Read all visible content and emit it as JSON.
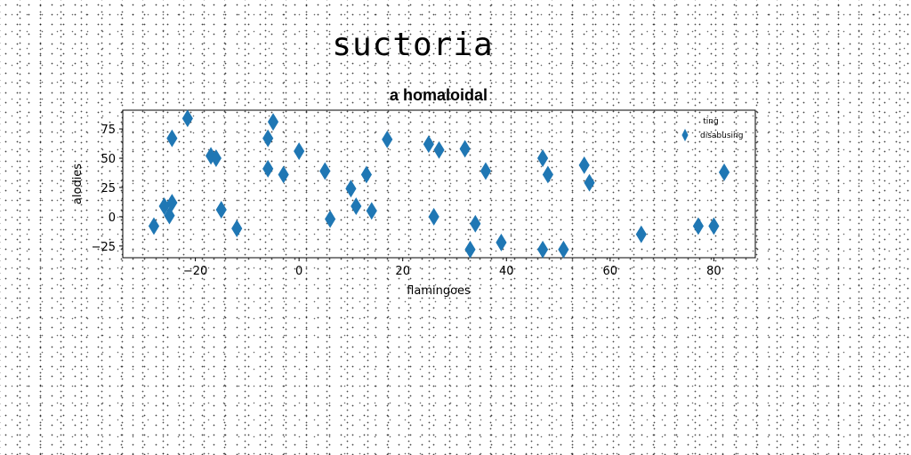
{
  "suptitle": "suctoria",
  "chart_data": {
    "type": "scatter",
    "title": "a homaloidal",
    "xlabel": "flamingoes",
    "ylabel": "alodies",
    "xlim": [
      -34,
      88
    ],
    "ylim": [
      -35,
      91
    ],
    "xticks": [
      -20,
      0,
      20,
      40,
      60,
      80
    ],
    "yticks": [
      -25,
      0,
      25,
      50,
      75
    ],
    "legend": {
      "title": "ting",
      "entries": [
        "disabusing"
      ],
      "placement": "top-right"
    },
    "series": [
      {
        "name": "disabusing",
        "marker": "thin_diamond",
        "color": "#1f77b4",
        "x": [
          -28,
          -26,
          -25,
          -24.5,
          -24.5,
          -21.5,
          -17,
          -16,
          -15,
          -12,
          -6,
          -6,
          -5,
          -3,
          0,
          5,
          6,
          10,
          11,
          13,
          14,
          17,
          25,
          26,
          27,
          32,
          33,
          34,
          36,
          39,
          47,
          47,
          48,
          51,
          55,
          56,
          66,
          77,
          80,
          82
        ],
        "y": [
          -8,
          9,
          1,
          67,
          12,
          84,
          52,
          50,
          6,
          -10,
          41,
          67,
          81,
          36,
          56,
          39,
          -2,
          24,
          9,
          36,
          5,
          66,
          62,
          0,
          57,
          58,
          -28,
          -6,
          39,
          -22,
          50,
          -28,
          36,
          -28,
          44,
          29,
          -15,
          -8,
          -8,
          38
        ]
      }
    ]
  }
}
